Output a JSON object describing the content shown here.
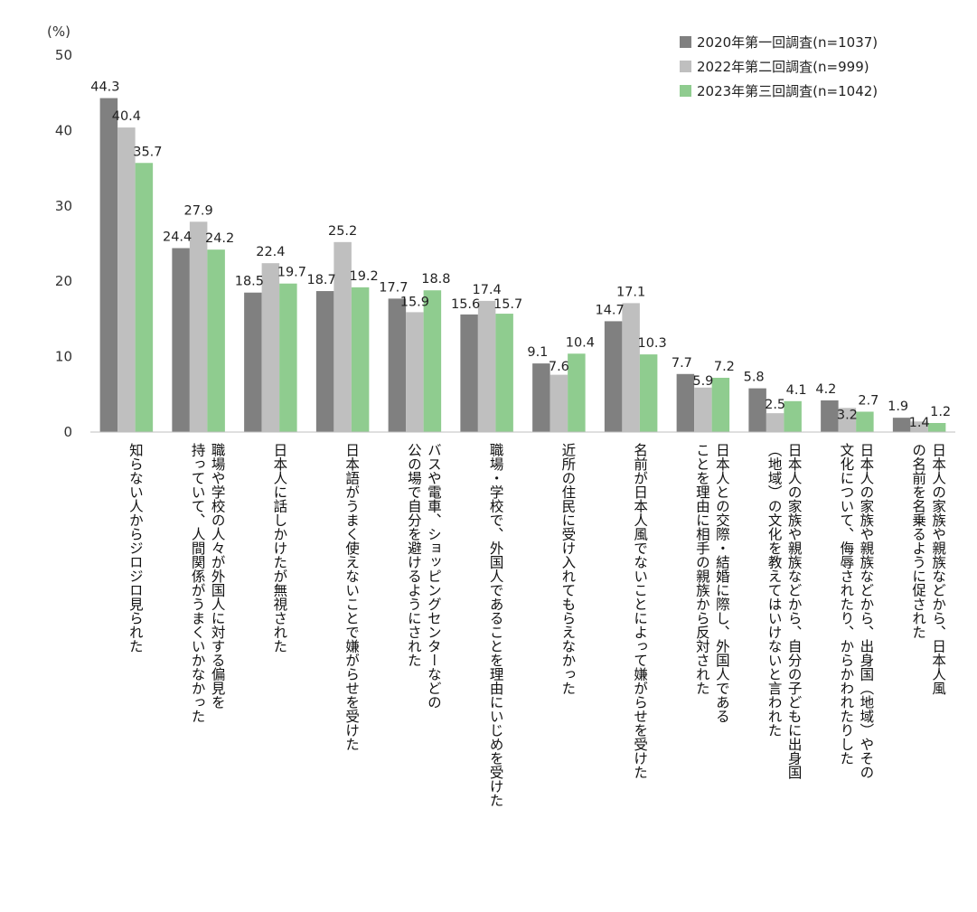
{
  "chart_data": {
    "type": "bar",
    "y_unit": "(%)",
    "ylim": [
      0,
      50
    ],
    "yticks": [
      0,
      10,
      20,
      30,
      40,
      50
    ],
    "grid": false,
    "legend_position": "top-right",
    "categories": [
      [
        "知らない人からジロジロ見られた"
      ],
      [
        "職場や学校の人々が外国人に対する偏見を",
        "持っていて、人間関係がうまくいかなかった"
      ],
      [
        "日本人に話しかけたが無視された"
      ],
      [
        "日本語がうまく使えないことで嫌がらせを受けた"
      ],
      [
        "バスや電車、ショッピングセンターなどの",
        "公の場で自分を避けるようにされた"
      ],
      [
        "職場・学校で、外国人であることを理由にいじめを受けた"
      ],
      [
        "近所の住民に受け入れてもらえなかった"
      ],
      [
        "名前が日本人風でないことによって嫌がらせを受けた"
      ],
      [
        "日本人との交際・結婚に際し、外国人である",
        "ことを理由に相手の親族から反対された"
      ],
      [
        "日本人の家族や親族などから、自分の子どもに出身国",
        "（地域）の文化を教えてはいけないと言われた"
      ],
      [
        "日本人の家族や親族などから、出身国（地域）やその",
        "文化について、侮辱されたり、からかわれたりした"
      ],
      [
        "日本人の家族や親族などから、日本人風",
        "の名前を名乗るように促された"
      ]
    ],
    "series": [
      {
        "name": "2020年第一回調査(n=1037)",
        "color": "#808080",
        "values": [
          44.3,
          24.4,
          18.5,
          18.7,
          17.7,
          15.6,
          9.1,
          14.7,
          7.7,
          5.8,
          4.2,
          1.9
        ]
      },
      {
        "name": "2022年第二回調査(n=999)",
        "color": "#bfbfbf",
        "values": [
          40.4,
          27.9,
          22.4,
          25.2,
          15.9,
          17.4,
          7.6,
          17.1,
          5.9,
          2.5,
          3.2,
          1.4
        ]
      },
      {
        "name": "2023年第三回調査(n=1042)",
        "color": "#8fcc8f",
        "values": [
          35.7,
          24.2,
          19.7,
          19.2,
          18.8,
          15.7,
          10.4,
          10.3,
          7.2,
          4.1,
          2.7,
          1.2
        ]
      }
    ]
  }
}
